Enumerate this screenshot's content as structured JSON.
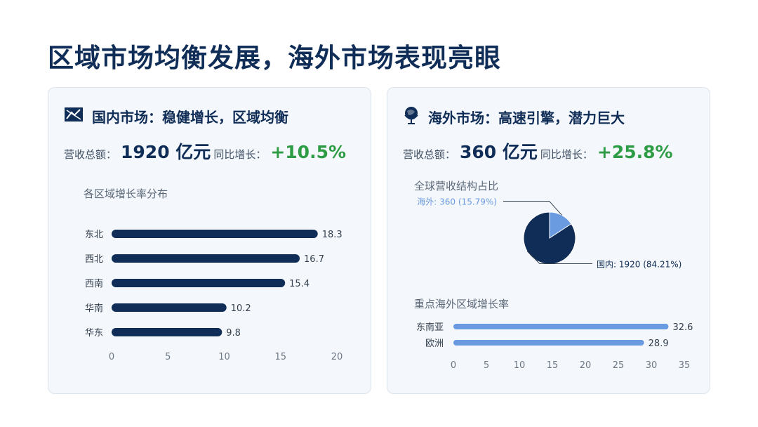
{
  "page": {
    "title": "区域市场均衡发展，海外市场表现亮眼"
  },
  "domestic": {
    "heading": "国内市场：稳健增长，区域均衡",
    "icon": "map-icon",
    "revenue_label": "营收总额：",
    "revenue_value": "1920 亿元",
    "growth_label": "同比增长：",
    "growth_value": "+10.5%",
    "chart_title": "各区域增长率分布"
  },
  "overseas": {
    "heading": "海外市场：高速引擎，潜力巨大",
    "icon": "globe-icon",
    "revenue_label": "营收总额：",
    "revenue_value": "360 亿元",
    "growth_label": "同比增长：",
    "growth_value": "+25.8%",
    "pie_title": "全球营收结构占比",
    "bar_title": "重点海外区域增长率"
  },
  "colors": {
    "navy": "#0f2d57",
    "light_blue": "#6a9be0",
    "green": "#2e9c44",
    "card_bg": "#f4f7fb"
  },
  "chart_data": [
    {
      "type": "bar",
      "orientation": "horizontal",
      "title": "各区域增长率分布",
      "categories": [
        "东北",
        "西北",
        "西南",
        "华南",
        "华东"
      ],
      "values": [
        18.3,
        16.7,
        15.4,
        10.2,
        9.8
      ],
      "value_labels": [
        "18.3",
        "16.7",
        "15.4",
        "10.2",
        "9.8"
      ],
      "xlim": [
        0,
        20
      ],
      "xticks": [
        0,
        5,
        10,
        15,
        20
      ],
      "color": "#0f2d57",
      "grid": false
    },
    {
      "type": "pie",
      "title": "全球营收结构占比",
      "slices": [
        {
          "label": "海外: 360 (15.79%)",
          "value": 360,
          "percent": 15.79,
          "color": "#6a9be0"
        },
        {
          "label": "国内: 1920 (84.21%)",
          "value": 1920,
          "percent": 84.21,
          "color": "#0f2d57"
        }
      ]
    },
    {
      "type": "bar",
      "orientation": "horizontal",
      "title": "重点海外区域增长率",
      "categories": [
        "东南亚",
        "欧洲"
      ],
      "values": [
        32.6,
        28.9
      ],
      "value_labels": [
        "32.6",
        "28.9"
      ],
      "xlim": [
        0,
        35
      ],
      "xticks": [
        0,
        5,
        10,
        15,
        20,
        25,
        30,
        35
      ],
      "color": "#6a9be0",
      "grid": false
    }
  ]
}
